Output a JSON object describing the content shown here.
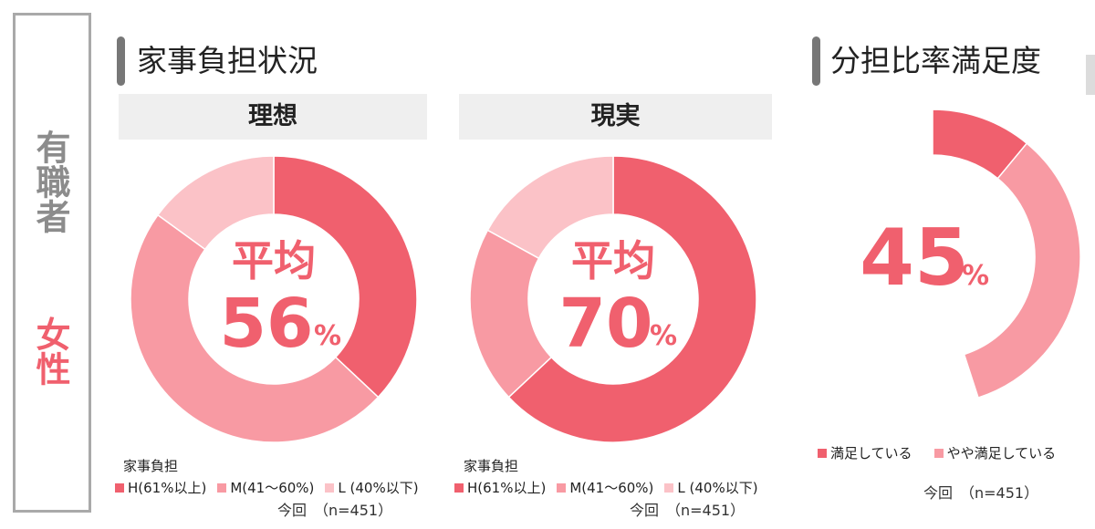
{
  "side_label": {
    "group": "有職者",
    "gender": "女性"
  },
  "sections": {
    "burden_title": "家事負担状況",
    "satisfaction_title": "分担比率満足度"
  },
  "panels": {
    "ideal": {
      "header": "理想",
      "center_top": "平均",
      "center_value": "56",
      "center_unit": "%"
    },
    "actual": {
      "header": "現実",
      "center_top": "平均",
      "center_value": "70",
      "center_unit": "%"
    },
    "satisfaction": {
      "center_value": "45",
      "center_unit": "%"
    }
  },
  "legend": {
    "title": "家事負担",
    "items": [
      "H(61%以上)",
      "M(41～60%)",
      "L (40%以下)"
    ],
    "note": "今回　（n=451）"
  },
  "satisfaction_legend": {
    "items": [
      "満足している",
      "やや満足している"
    ],
    "note": "今回　（n=451）"
  },
  "colors": {
    "H": "#f0606e",
    "M": "#f89aa3",
    "L": "#fbc2c7",
    "accent": "#f0606e",
    "side_gray": "#8c8c8c"
  },
  "chart_data": [
    {
      "type": "pie",
      "title": "理想",
      "categories": [
        "H(61%以上)",
        "M(41～60%)",
        "L (40%以下)"
      ],
      "values": [
        37,
        48,
        15
      ]
    },
    {
      "type": "pie",
      "title": "現実",
      "categories": [
        "H(61%以上)",
        "M(41～60%)",
        "L (40%以下)"
      ],
      "values": [
        63,
        20,
        17
      ]
    },
    {
      "type": "pie",
      "title": "分担比率満足度",
      "categories": [
        "満足している",
        "やや満足している"
      ],
      "values": [
        11,
        34
      ]
    }
  ]
}
